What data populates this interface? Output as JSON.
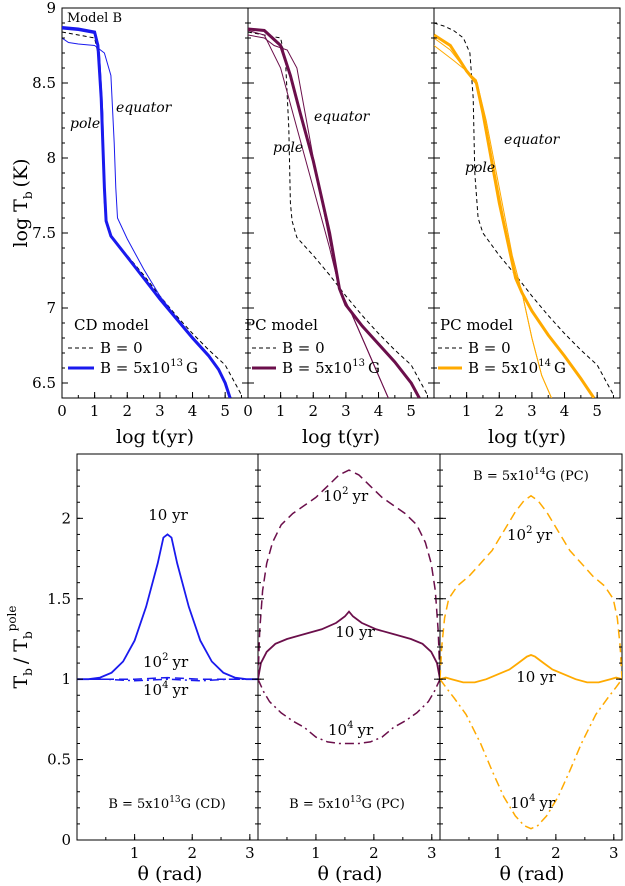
{
  "chart_data": [
    {
      "type": "line",
      "panel": "top-left",
      "corner_label": "Model B",
      "x_ticks": [
        "0",
        "1",
        "2",
        "3",
        "4",
        "5"
      ],
      "y_ticks": [
        "9",
        "8.5",
        "8",
        "7.5",
        "7",
        "6.5"
      ],
      "xlim": [
        0,
        5.7
      ],
      "ylim": [
        6.4,
        9.0
      ],
      "xlabel": "log t(yr)",
      "ylabel": "log T",
      "ylabel_sub": "b",
      "ylabel_unit": "(K)",
      "annotations": {
        "pole": "pole",
        "equator": "equator"
      },
      "legend": {
        "title": "CD model",
        "dashed": "B = 0",
        "solid": "B = 5x10",
        "solid_exp": "13",
        "solid_unit": "G"
      },
      "color": "#1a1aee",
      "series": [
        {
          "name": "B = 0",
          "style": "dashed",
          "x": [
            0,
            0.5,
            1.0,
            1.15,
            1.25,
            1.3,
            1.35,
            1.5,
            2,
            2.5,
            3,
            3.5,
            4,
            4.5,
            5,
            5.5
          ],
          "y": [
            8.84,
            8.82,
            8.8,
            8.65,
            8.2,
            7.7,
            7.58,
            7.47,
            7.35,
            7.22,
            7.08,
            6.95,
            6.83,
            6.72,
            6.62,
            6.42
          ]
        },
        {
          "name": "B = 5x10^13 G",
          "style": "solid",
          "x": [
            0,
            0.5,
            1.0,
            1.1,
            1.2,
            1.3,
            1.35,
            1.5,
            2,
            2.5,
            3,
            3.5,
            4,
            4.5,
            4.8,
            5.0,
            5.15
          ],
          "y": [
            8.87,
            8.86,
            8.84,
            8.75,
            8.4,
            7.8,
            7.58,
            7.48,
            7.34,
            7.2,
            7.06,
            6.93,
            6.8,
            6.68,
            6.59,
            6.5,
            6.4
          ]
        },
        {
          "name": "pole",
          "style": "thin",
          "x": [
            0,
            0.5,
            1.0,
            1.15,
            1.25,
            1.3,
            1.35,
            1.5,
            2,
            2.5,
            3,
            3.5,
            4,
            4.5,
            4.8,
            5.0,
            5.15
          ],
          "y": [
            8.86,
            8.85,
            8.83,
            8.7,
            8.3,
            7.75,
            7.58,
            7.48,
            7.34,
            7.2,
            7.06,
            6.93,
            6.8,
            6.68,
            6.59,
            6.5,
            6.4
          ]
        },
        {
          "name": "equator",
          "style": "thin",
          "x": [
            0,
            0.2,
            0.5,
            1.0,
            1.3,
            1.5,
            1.6,
            1.65,
            1.7,
            2,
            2.5,
            3,
            3.5,
            4,
            4.5,
            4.8,
            5.0,
            5.15
          ],
          "y": [
            8.8,
            8.77,
            8.76,
            8.75,
            8.7,
            8.55,
            8.1,
            7.8,
            7.6,
            7.46,
            7.26,
            7.08,
            6.94,
            6.81,
            6.69,
            6.59,
            6.5,
            6.4
          ]
        }
      ]
    },
    {
      "type": "line",
      "panel": "top-middle",
      "x_ticks": [
        "0",
        "1",
        "2",
        "3",
        "4",
        "5"
      ],
      "xlim": [
        0,
        5.7
      ],
      "ylim": [
        6.4,
        9.0
      ],
      "xlabel": "log t(yr)",
      "annotations": {
        "pole": "pole",
        "equator": "equator"
      },
      "legend": {
        "title": "PC model",
        "dashed": "B = 0",
        "solid": "B = 5x10",
        "solid_exp": "13",
        "solid_unit": "G"
      },
      "color": "#6b0f4b",
      "series": [
        {
          "name": "B = 0",
          "style": "dashed",
          "x": [
            0,
            0.5,
            1.0,
            1.15,
            1.25,
            1.3,
            1.35,
            1.5,
            2,
            2.5,
            3,
            3.5,
            4,
            4.5,
            5,
            5.5
          ],
          "y": [
            8.84,
            8.82,
            8.8,
            8.65,
            8.2,
            7.7,
            7.58,
            7.47,
            7.35,
            7.22,
            7.08,
            6.95,
            6.83,
            6.72,
            6.62,
            6.42
          ]
        },
        {
          "name": "B = 5x10^13 G",
          "style": "solid",
          "x": [
            0,
            0.5,
            1.0,
            1.3,
            1.6,
            2.0,
            2.5,
            2.8,
            3.0,
            3.5,
            4.0,
            4.5,
            5.0,
            5.25
          ],
          "y": [
            8.86,
            8.85,
            8.75,
            8.55,
            8.3,
            7.98,
            7.5,
            7.13,
            7.02,
            6.88,
            6.76,
            6.64,
            6.5,
            6.4
          ]
        },
        {
          "name": "pole",
          "style": "thin",
          "x": [
            0,
            0.5,
            1.0,
            1.5,
            2.0,
            2.5,
            2.8,
            3.2,
            3.6,
            4.0,
            4.3
          ],
          "y": [
            8.85,
            8.82,
            8.6,
            8.2,
            7.8,
            7.4,
            7.13,
            6.95,
            6.75,
            6.55,
            6.4
          ]
        },
        {
          "name": "equator",
          "style": "thin",
          "x": [
            0,
            0.5,
            0.8,
            1.2,
            1.5,
            2.0,
            2.5,
            2.8,
            3.2,
            3.6,
            4.0,
            4.3
          ],
          "y": [
            8.82,
            8.8,
            8.75,
            8.72,
            8.6,
            8.0,
            7.45,
            7.13,
            6.95,
            6.75,
            6.55,
            6.4
          ]
        }
      ]
    },
    {
      "type": "line",
      "panel": "top-right",
      "x_ticks": [
        "1",
        "2",
        "3",
        "4",
        "5"
      ],
      "xlim": [
        0,
        5.7
      ],
      "ylim": [
        6.4,
        9.0
      ],
      "xlabel": "log t(yr)",
      "annotations": {
        "pole": "pole",
        "equator": "equator"
      },
      "legend": {
        "title": "PC model",
        "dashed": "B = 0",
        "solid": "B = 5x10",
        "solid_exp": "14",
        "solid_unit": "G"
      },
      "color": "#ffaa00",
      "series": [
        {
          "name": "B = 0",
          "style": "dashed",
          "x": [
            0,
            0.3,
            0.6,
            0.9,
            1.1,
            1.2,
            1.25,
            1.35,
            1.5,
            2,
            2.5,
            3,
            3.5,
            4,
            4.5,
            5,
            5.5
          ],
          "y": [
            8.9,
            8.88,
            8.85,
            8.8,
            8.7,
            8.4,
            7.9,
            7.6,
            7.5,
            7.35,
            7.22,
            7.08,
            6.95,
            6.83,
            6.72,
            6.62,
            6.42
          ]
        },
        {
          "name": "B = 5x10^14 G",
          "style": "solid",
          "x": [
            0,
            0.5,
            1.0,
            1.3,
            1.5,
            2.0,
            2.5,
            2.7,
            3.0,
            3.5,
            4.0,
            4.5,
            4.9
          ],
          "y": [
            8.82,
            8.75,
            8.58,
            8.5,
            8.3,
            7.7,
            7.2,
            7.1,
            6.98,
            6.82,
            6.68,
            6.53,
            6.4
          ]
        },
        {
          "name": "pole",
          "style": "thin",
          "x": [
            0,
            0.5,
            1.0,
            1.3,
            1.6,
            2.0,
            2.4,
            2.7,
            3.0,
            3.3,
            3.6
          ],
          "y": [
            8.8,
            8.72,
            8.58,
            8.5,
            8.2,
            7.75,
            7.3,
            7.1,
            6.8,
            6.55,
            6.4
          ]
        },
        {
          "name": "equator",
          "style": "thin",
          "x": [
            0,
            0.3,
            0.6,
            1.0,
            1.3,
            1.6,
            2.0,
            2.4,
            2.7,
            3.0,
            3.3,
            3.6
          ],
          "y": [
            8.75,
            8.7,
            8.65,
            8.58,
            8.52,
            8.25,
            7.8,
            7.35,
            7.1,
            6.8,
            6.55,
            6.4
          ]
        }
      ]
    },
    {
      "type": "line",
      "panel": "bottom-left",
      "x_ticks": [
        "1",
        "2",
        "3"
      ],
      "y_ticks": [
        "0",
        "0.5",
        "1",
        "1.5",
        "2"
      ],
      "xlim": [
        0,
        3.1416
      ],
      "ylim": [
        0,
        2.4
      ],
      "xlabel": "θ (rad)",
      "ylabel": "T",
      "ylabel_sub": "b",
      "ylabel_div": "/ T",
      "ylabel_sub2": "b",
      "ylabel_sup2": "pole",
      "caption": "B = 5x10",
      "caption_exp": "13",
      "caption_unit": "G (CD)",
      "curve_labels": {
        "a": "10 yr",
        "b_base": "10",
        "b_exp": "2",
        "b_unit": "yr",
        "c_base": "10",
        "c_exp": "4",
        "c_unit": "yr"
      },
      "color": "#1a1aee",
      "series": [
        {
          "name": "10 yr",
          "style": "solid",
          "x": [
            0,
            0.2,
            0.4,
            0.6,
            0.8,
            1.0,
            1.2,
            1.4,
            1.5,
            1.571,
            1.64,
            1.74,
            1.94,
            2.14,
            2.34,
            2.54,
            2.74,
            2.94,
            3.1416
          ],
          "y": [
            1.0,
            1.0,
            1.01,
            1.04,
            1.11,
            1.24,
            1.45,
            1.72,
            1.88,
            1.9,
            1.88,
            1.72,
            1.45,
            1.24,
            1.11,
            1.04,
            1.01,
            1.0,
            1.0
          ]
        },
        {
          "name": "10^2 yr",
          "style": "dashed",
          "x": [
            0,
            0.5,
            1.0,
            1.571,
            2.14,
            2.64,
            3.1416
          ],
          "y": [
            1.0,
            1.0,
            1.0,
            1.01,
            1.0,
            1.0,
            1.0
          ]
        },
        {
          "name": "10^4 yr",
          "style": "dashdot",
          "x": [
            0,
            0.5,
            1.0,
            1.571,
            2.14,
            2.64,
            3.1416
          ],
          "y": [
            1.0,
            1.0,
            0.99,
            1.0,
            0.99,
            1.0,
            1.0
          ]
        }
      ]
    },
    {
      "type": "line",
      "panel": "bottom-middle",
      "x_ticks": [
        "1",
        "2",
        "3"
      ],
      "xlim": [
        0,
        3.1416
      ],
      "ylim": [
        0,
        2.4
      ],
      "xlabel": "θ (rad)",
      "caption": "B = 5x10",
      "caption_exp": "13",
      "caption_unit": "G (PC)",
      "curve_labels": {
        "a": "10 yr",
        "b_base": "10",
        "b_exp": "2",
        "b_unit": "yr",
        "c_base": "10",
        "c_exp": "4",
        "c_unit": "yr"
      },
      "color": "#6b0f4b",
      "series": [
        {
          "name": "10^2 yr",
          "style": "dashed",
          "x": [
            0,
            0.03,
            0.08,
            0.15,
            0.25,
            0.4,
            0.6,
            0.8,
            1.0,
            1.2,
            1.4,
            1.571,
            1.74,
            1.94,
            2.14,
            2.34,
            2.54,
            2.74,
            2.89,
            2.99,
            3.06,
            3.11,
            3.1416
          ],
          "y": [
            1.0,
            1.3,
            1.55,
            1.72,
            1.85,
            1.96,
            2.03,
            2.08,
            2.13,
            2.2,
            2.27,
            2.3,
            2.27,
            2.2,
            2.13,
            2.08,
            2.03,
            1.96,
            1.85,
            1.72,
            1.55,
            1.3,
            1.0
          ]
        },
        {
          "name": "10 yr",
          "style": "solid",
          "x": [
            0,
            0.05,
            0.15,
            0.3,
            0.5,
            0.8,
            1.1,
            1.35,
            1.5,
            1.571,
            1.64,
            1.79,
            2.04,
            2.34,
            2.64,
            2.84,
            2.99,
            3.09,
            3.1416
          ],
          "y": [
            1.0,
            1.1,
            1.17,
            1.22,
            1.25,
            1.28,
            1.31,
            1.35,
            1.39,
            1.42,
            1.39,
            1.35,
            1.31,
            1.28,
            1.25,
            1.22,
            1.17,
            1.1,
            1.0
          ]
        },
        {
          "name": "10^4 yr",
          "style": "dashdot",
          "x": [
            0,
            0.1,
            0.2,
            0.4,
            0.6,
            0.8,
            1.0,
            1.2,
            1.4,
            1.571,
            1.74,
            1.94,
            2.14,
            2.34,
            2.54,
            2.74,
            2.94,
            3.04,
            3.1416
          ],
          "y": [
            1.0,
            0.92,
            0.86,
            0.79,
            0.74,
            0.7,
            0.64,
            0.61,
            0.6,
            0.6,
            0.6,
            0.61,
            0.64,
            0.7,
            0.74,
            0.79,
            0.86,
            0.92,
            1.0
          ]
        }
      ]
    },
    {
      "type": "line",
      "panel": "bottom-right",
      "x_ticks": [
        "1",
        "2",
        "3"
      ],
      "xlim": [
        0,
        3.1416
      ],
      "ylim": [
        0,
        2.4
      ],
      "xlabel": "θ (rad)",
      "caption": "B = 5x10",
      "caption_exp": "14",
      "caption_unit": "G (PC)",
      "curve_labels": {
        "a": "10 yr",
        "b_base": "10",
        "b_exp": "2",
        "b_unit": "yr",
        "c_base": "10",
        "c_exp": "4",
        "c_unit": "yr"
      },
      "color": "#ffaa00",
      "series": [
        {
          "name": "10^2 yr",
          "style": "dashed",
          "x": [
            0,
            0.03,
            0.08,
            0.15,
            0.3,
            0.5,
            0.7,
            0.9,
            1.1,
            1.3,
            1.45,
            1.571,
            1.69,
            1.84,
            2.04,
            2.24,
            2.44,
            2.64,
            2.84,
            2.99,
            3.06,
            3.11,
            3.1416
          ],
          "y": [
            1.0,
            1.2,
            1.38,
            1.5,
            1.58,
            1.64,
            1.72,
            1.8,
            1.92,
            2.04,
            2.11,
            2.14,
            2.11,
            2.04,
            1.92,
            1.8,
            1.72,
            1.64,
            1.58,
            1.5,
            1.38,
            1.2,
            1.0
          ]
        },
        {
          "name": "10 yr",
          "style": "solid",
          "x": [
            0,
            0.1,
            0.2,
            0.4,
            0.6,
            0.8,
            1.0,
            1.2,
            1.35,
            1.5,
            1.571,
            1.64,
            1.79,
            1.94,
            2.14,
            2.34,
            2.54,
            2.74,
            2.94,
            3.04,
            3.1416
          ],
          "y": [
            1.0,
            1.01,
            1.0,
            0.98,
            0.98,
            1.0,
            1.03,
            1.06,
            1.1,
            1.14,
            1.15,
            1.14,
            1.1,
            1.06,
            1.03,
            1.0,
            0.98,
            0.98,
            1.0,
            1.01,
            1.0
          ]
        },
        {
          "name": "10^4 yr",
          "style": "dashdot",
          "x": [
            0,
            0.1,
            0.25,
            0.45,
            0.7,
            0.9,
            1.1,
            1.3,
            1.45,
            1.571,
            1.69,
            1.84,
            2.04,
            2.24,
            2.44,
            2.69,
            2.89,
            3.04,
            3.1416
          ],
          "y": [
            1.0,
            0.95,
            0.88,
            0.78,
            0.6,
            0.43,
            0.27,
            0.15,
            0.09,
            0.07,
            0.09,
            0.15,
            0.27,
            0.43,
            0.6,
            0.78,
            0.88,
            0.95,
            1.0
          ]
        }
      ]
    }
  ]
}
